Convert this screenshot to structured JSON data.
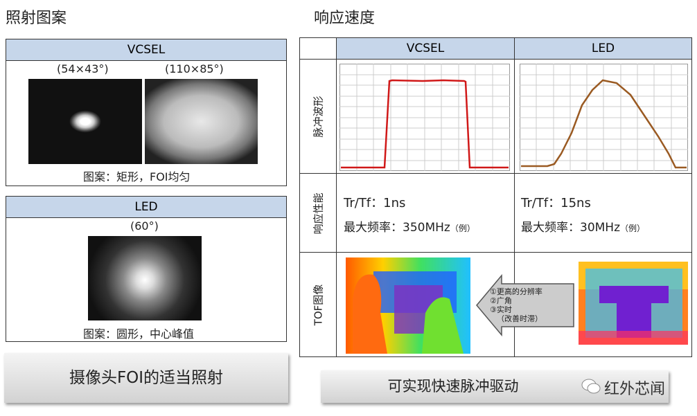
{
  "left": {
    "title": "照射图案",
    "vcsel": {
      "header": "VCSEL",
      "labels": [
        "(54×43°)",
        "(110×85°)"
      ],
      "caption": "图案：矩形，FOI均匀"
    },
    "led": {
      "header": "LED",
      "label": "(60°)",
      "caption": "图案：圆形，中心峰值"
    },
    "button": "摄像头FOI的适当照射"
  },
  "right": {
    "title": "响应速度",
    "columns": [
      "VCSEL",
      "LED"
    ],
    "rows": [
      "脉冲波形",
      "响应性能",
      "TOF图像"
    ],
    "performance": [
      {
        "tr": "Tr/Tf：1ns",
        "freq": "最大频率：350MHz",
        "note": "（例）"
      },
      {
        "tr": "Tr/Tf：15ns",
        "freq": "最大频率：30MHz",
        "note": "（例）"
      }
    ],
    "arrow": [
      "①更高的分辨率",
      "②广角",
      "③实时",
      "（改善时滞）"
    ],
    "button": "可实现快速脉冲驱动"
  },
  "watermark": "红外芯闻"
}
